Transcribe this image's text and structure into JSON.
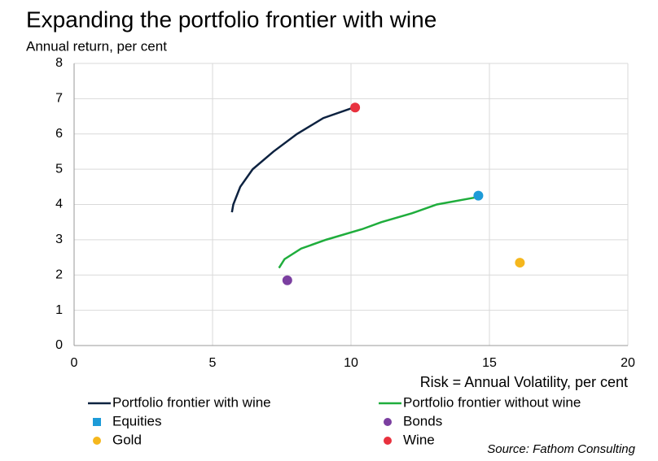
{
  "chart_data": {
    "type": "scatter",
    "title": "Expanding the portfolio frontier with wine",
    "y_label": "Annual return, per cent",
    "x_label": "Risk = Annual Volatility, per cent",
    "source": "Source: Fathom Consulting",
    "xlim": [
      0,
      20
    ],
    "xticks": [
      0,
      5,
      10,
      15,
      20
    ],
    "ylim": [
      0,
      8
    ],
    "yticks": [
      0,
      1,
      2,
      3,
      4,
      5,
      6,
      7,
      8
    ],
    "grid": true,
    "series": [
      {
        "name": "Portfolio frontier with wine",
        "color": "#0d2240",
        "mode": "line",
        "x": [
          5.7,
          5.75,
          6.0,
          6.45,
          7.2,
          8.05,
          9.0,
          10.1
        ],
        "y": [
          3.78,
          4.0,
          4.5,
          5.0,
          5.5,
          6.0,
          6.45,
          6.75
        ]
      },
      {
        "name": "Portfolio frontier without wine",
        "color": "#1fad3c",
        "mode": "line",
        "x": [
          7.4,
          7.6,
          8.2,
          9.1,
          10.4,
          11.1,
          12.2,
          13.1,
          14.5
        ],
        "y": [
          2.2,
          2.45,
          2.75,
          3.0,
          3.3,
          3.5,
          3.75,
          4.0,
          4.2
        ]
      },
      {
        "name": "Equities",
        "color": "#1d9bd8",
        "mode": "marker",
        "legend_marker": "square",
        "x": [
          14.6
        ],
        "y": [
          4.25
        ]
      },
      {
        "name": "Bonds",
        "color": "#7b3fa0",
        "mode": "marker",
        "legend_marker": "circle",
        "x": [
          7.7
        ],
        "y": [
          1.85
        ]
      },
      {
        "name": "Gold",
        "color": "#f5b71d",
        "mode": "marker",
        "legend_marker": "circle",
        "x": [
          16.1
        ],
        "y": [
          2.35
        ]
      },
      {
        "name": "Wine",
        "color": "#e8313e",
        "mode": "marker",
        "legend_marker": "circle",
        "x": [
          10.15
        ],
        "y": [
          6.75
        ]
      }
    ]
  }
}
